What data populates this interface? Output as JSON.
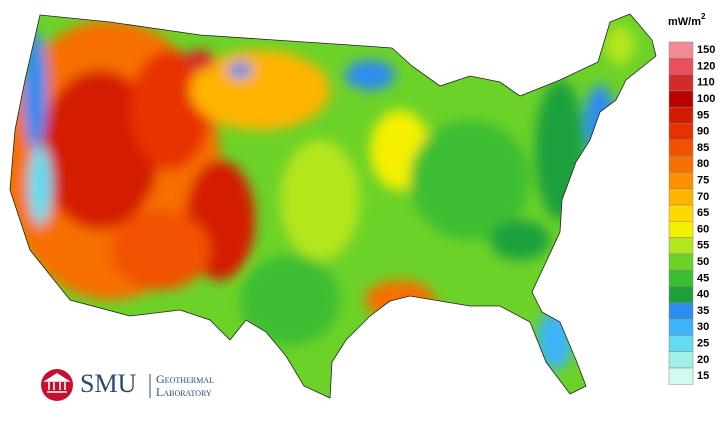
{
  "legend": {
    "unit": "mW/m",
    "unit_exponent": "2",
    "entries": [
      {
        "label": "150",
        "color": "#f28a96"
      },
      {
        "label": "120",
        "color": "#e8505e"
      },
      {
        "label": "110",
        "color": "#d42a2a"
      },
      {
        "label": "100",
        "color": "#b80000"
      },
      {
        "label": "95",
        "color": "#d41a00"
      },
      {
        "label": "90",
        "color": "#e83000"
      },
      {
        "label": "85",
        "color": "#f25200"
      },
      {
        "label": "80",
        "color": "#f77000"
      },
      {
        "label": "75",
        "color": "#fb9000"
      },
      {
        "label": "70",
        "color": "#ffb400"
      },
      {
        "label": "65",
        "color": "#ffd800"
      },
      {
        "label": "60",
        "color": "#f4f000"
      },
      {
        "label": "55",
        "color": "#b4e61e"
      },
      {
        "label": "50",
        "color": "#6cd228"
      },
      {
        "label": "45",
        "color": "#3cbe32"
      },
      {
        "label": "40",
        "color": "#1ea03c"
      },
      {
        "label": "35",
        "color": "#2d8cf0"
      },
      {
        "label": "30",
        "color": "#3cb4f5"
      },
      {
        "label": "25",
        "color": "#64dcf0"
      },
      {
        "label": "20",
        "color": "#a0f0e6"
      },
      {
        "label": "15",
        "color": "#d2faf0"
      }
    ]
  },
  "logo": {
    "name": "SMU",
    "line1": "Geothermal",
    "line2": "Laboratory"
  }
}
